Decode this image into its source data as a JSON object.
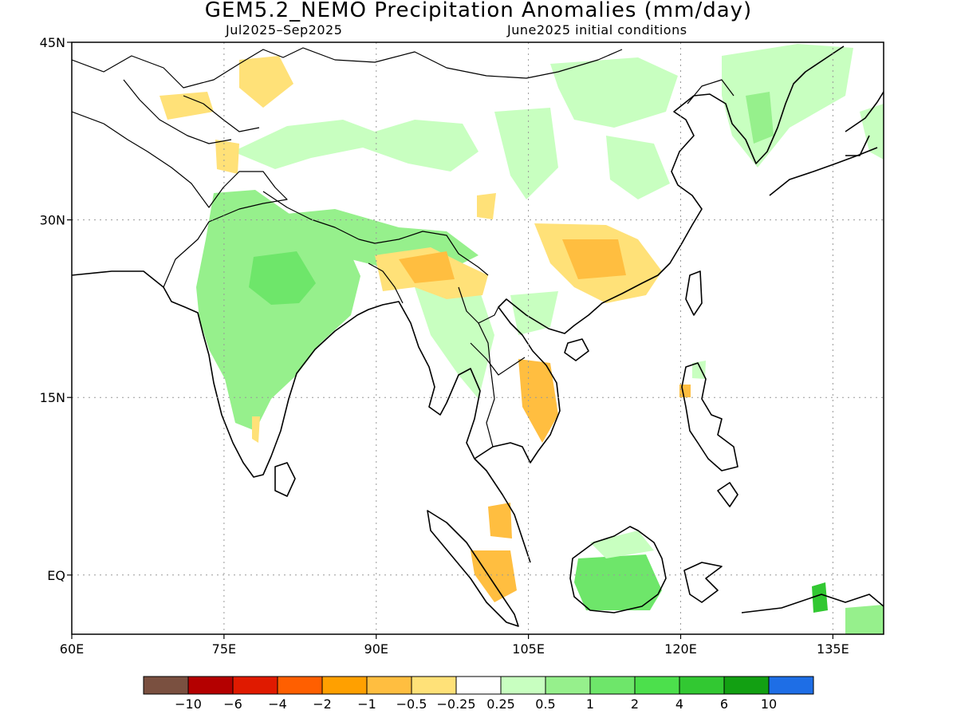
{
  "title": "GEM5.2_NEMO Precipitation Anomalies (mm/day)",
  "subtitle_left": "Jul2025–Sep2025",
  "subtitle_right": "June2025 initial conditions",
  "map": {
    "lon_range": [
      60,
      140
    ],
    "lat_range": [
      -5,
      45
    ],
    "lon_ticks": [
      {
        "value": 60,
        "label": "60E"
      },
      {
        "value": 75,
        "label": "75E"
      },
      {
        "value": 90,
        "label": "90E"
      },
      {
        "value": 105,
        "label": "105E"
      },
      {
        "value": 120,
        "label": "120E"
      },
      {
        "value": 135,
        "label": "135E"
      }
    ],
    "lat_ticks": [
      {
        "value": 45,
        "label": "45N"
      },
      {
        "value": 30,
        "label": "30N"
      },
      {
        "value": 15,
        "label": "15N"
      },
      {
        "value": 0,
        "label": "EQ"
      }
    ],
    "grid": "dotted"
  },
  "colorbar": {
    "colors": [
      "#7a5040",
      "#b40000",
      "#e01a00",
      "#ff5f00",
      "#ffa000",
      "#ffbe40",
      "#ffe178",
      "#ffffff",
      "#c8ffc0",
      "#96f08c",
      "#6ee66a",
      "#4ce04c",
      "#32c832",
      "#12a012",
      "#1e6ee6"
    ],
    "labels": [
      "−10",
      "−6",
      "−4",
      "−2",
      "−1",
      "−0.5",
      "−0.25",
      "0.25",
      "0.5",
      "1",
      "2",
      "4",
      "6",
      "10"
    ]
  }
}
